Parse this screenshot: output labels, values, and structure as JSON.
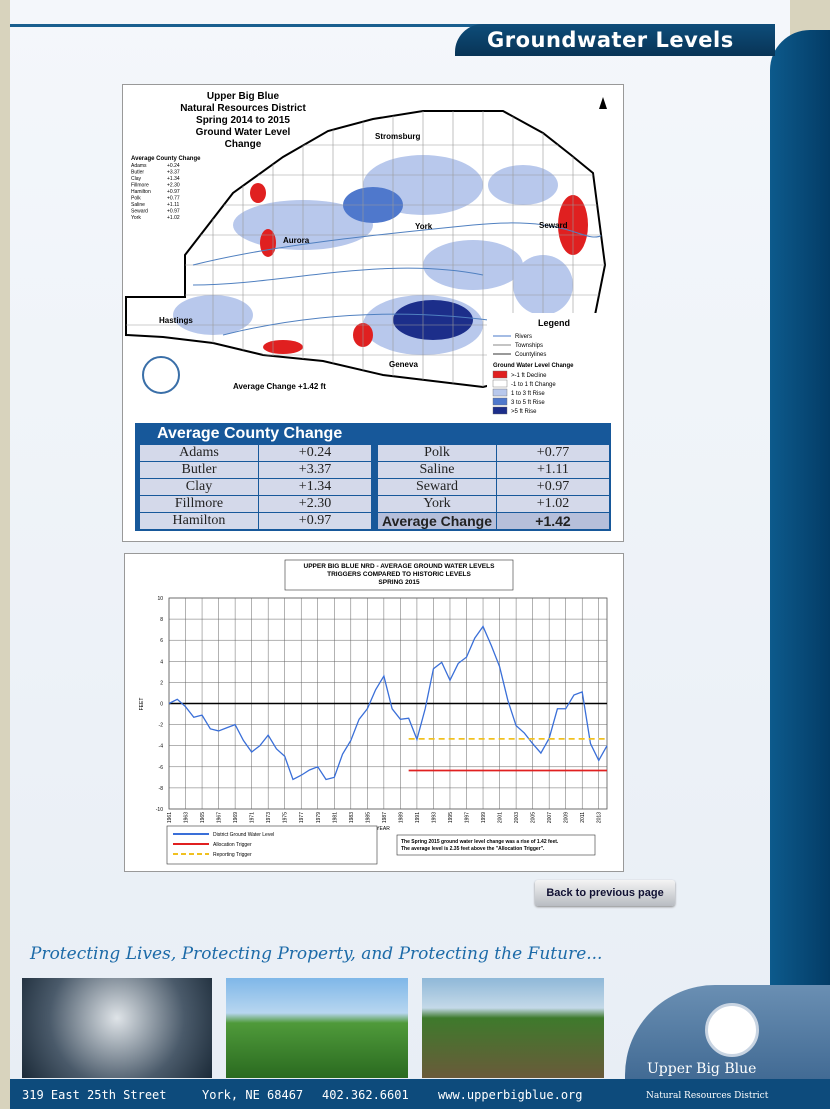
{
  "header": {
    "title": "Groundwater Levels"
  },
  "map": {
    "title": [
      "Upper Big Blue",
      "Natural Resources District",
      "Spring 2014 to 2015",
      "Ground Water Level",
      "Change"
    ],
    "county_list": {
      "title": "Average County Change",
      "rows": [
        [
          "Adams",
          "+0.24"
        ],
        [
          "Butler",
          "+3.37"
        ],
        [
          "Clay",
          "+1.34"
        ],
        [
          "Fillmore",
          "+2.30"
        ],
        [
          "Hamilton",
          "+0.97"
        ],
        [
          "Polk",
          "+0.77"
        ],
        [
          "Saline",
          "+1.11"
        ],
        [
          "Seward",
          "+0.97"
        ],
        [
          "York",
          "+1.02"
        ]
      ]
    },
    "cities": [
      "Stromsburg",
      "York",
      "Aurora",
      "Seward",
      "Hastings",
      "Geneva"
    ],
    "legend": {
      "title": "Legend",
      "lines": [
        "Rivers",
        "Townships",
        "Countylines"
      ],
      "change_title": "Ground Water Level Change",
      "items": [
        {
          "label": ">-1 ft Decline",
          "color": "#e02020"
        },
        {
          "label": "-1 to 1 ft Change",
          "color": "#ffffff"
        },
        {
          "label": "1 to 3 ft Rise",
          "color": "#b8c8ec"
        },
        {
          "label": "3 to 5 ft Rise",
          "color": "#4f78cc"
        },
        {
          "label": ">5 ft Rise",
          "color": "#1c2e8a"
        }
      ]
    },
    "average": "Average Change +1.42 ft"
  },
  "table": {
    "title": "Average County Change",
    "left": [
      [
        "Adams",
        "+0.24"
      ],
      [
        "Butler",
        "+3.37"
      ],
      [
        "Clay",
        "+1.34"
      ],
      [
        "Fillmore",
        "+2.30"
      ],
      [
        "Hamilton",
        "+0.97"
      ]
    ],
    "right": [
      [
        "Polk",
        "+0.77"
      ],
      [
        "Saline",
        "+1.11"
      ],
      [
        "Seward",
        "+0.97"
      ],
      [
        "York",
        "+1.02"
      ],
      [
        "Average Change",
        "+1.42"
      ]
    ]
  },
  "chart_data": {
    "type": "line",
    "title": [
      "UPPER BIG BLUE NRD - AVERAGE GROUND WATER LEVELS",
      "TRIGGERS COMPARED TO HISTORIC LEVELS",
      "SPRING 2015"
    ],
    "y_label": "FEET",
    "x_label": "YEAR",
    "x": [
      1961,
      1962,
      1963,
      1964,
      1965,
      1966,
      1967,
      1968,
      1969,
      1970,
      1971,
      1972,
      1973,
      1974,
      1975,
      1976,
      1977,
      1978,
      1979,
      1980,
      1981,
      1982,
      1983,
      1984,
      1985,
      1986,
      1987,
      1988,
      1989,
      1990,
      1991,
      1992,
      1993,
      1994,
      1995,
      1996,
      1997,
      1998,
      1999,
      2000,
      2001,
      2002,
      2003,
      2004,
      2005,
      2006,
      2007,
      2008,
      2009,
      2010,
      2011,
      2012,
      2013,
      2014
    ],
    "series": [
      {
        "name": "District Ground Water Level",
        "color": "#3a6fd8",
        "values": [
          0,
          0.4,
          -0.3,
          -1.3,
          -1.1,
          -2.4,
          -2.6,
          -2.3,
          -2.0,
          -3.5,
          -4.6,
          -4.0,
          -3.0,
          -4.3,
          -5.0,
          -7.2,
          -6.8,
          -6.3,
          -6.0,
          -7.2,
          -7.0,
          -4.8,
          -3.5,
          -1.5,
          -0.5,
          1.3,
          2.6,
          -0.5,
          -1.5,
          -1.4,
          -3.4,
          -0.5,
          3.3,
          3.9,
          2.2,
          3.8,
          4.4,
          6.2,
          7.3,
          5.5,
          3.5,
          0.3,
          -2.1,
          -2.8,
          -3.8,
          -4.7,
          -3.3,
          -0.5,
          -0.5,
          0.8,
          1.1,
          -3.8,
          -5.4,
          -4.0
        ]
      },
      {
        "name": "Allocation Trigger",
        "color": "#e02020",
        "x": [
          1990,
          2014
        ],
        "values": [
          -6.35,
          -6.35
        ]
      },
      {
        "name": "Reporting Trigger",
        "color": "#f0c020",
        "dashed": true,
        "x": [
          1990,
          2014
        ],
        "values": [
          -3.35,
          -3.35
        ]
      }
    ],
    "xlim": [
      1961,
      2014
    ],
    "ylim": [
      -10,
      10
    ],
    "yticks": [
      -10,
      -8,
      -6,
      -4,
      -2,
      0,
      2,
      4,
      6,
      8,
      10
    ],
    "xticks": [
      1961,
      1963,
      1965,
      1967,
      1969,
      1971,
      1973,
      1975,
      1977,
      1979,
      1981,
      1983,
      1985,
      1987,
      1989,
      1991,
      1993,
      1995,
      1997,
      1999,
      2001,
      2003,
      2005,
      2007,
      2009,
      2011,
      2013
    ],
    "grid": true,
    "zero_line": true,
    "note": [
      "The Spring 2015 ground water level change was a rise of 1.42 feet.",
      "The average level is 2.35 feet above the \"Allocation Trigger\"."
    ]
  },
  "nav": {
    "back": "Back to previous page"
  },
  "tagline": "Protecting Lives, Protecting Property, and Protecting the Future...",
  "footer": {
    "address": "319 East 25th Street",
    "city": "York, NE 68467",
    "phone": "402.362.6601",
    "web": "www.upperbigblue.org",
    "org": "Upper Big Blue",
    "org_sub": "Natural Resources District"
  }
}
